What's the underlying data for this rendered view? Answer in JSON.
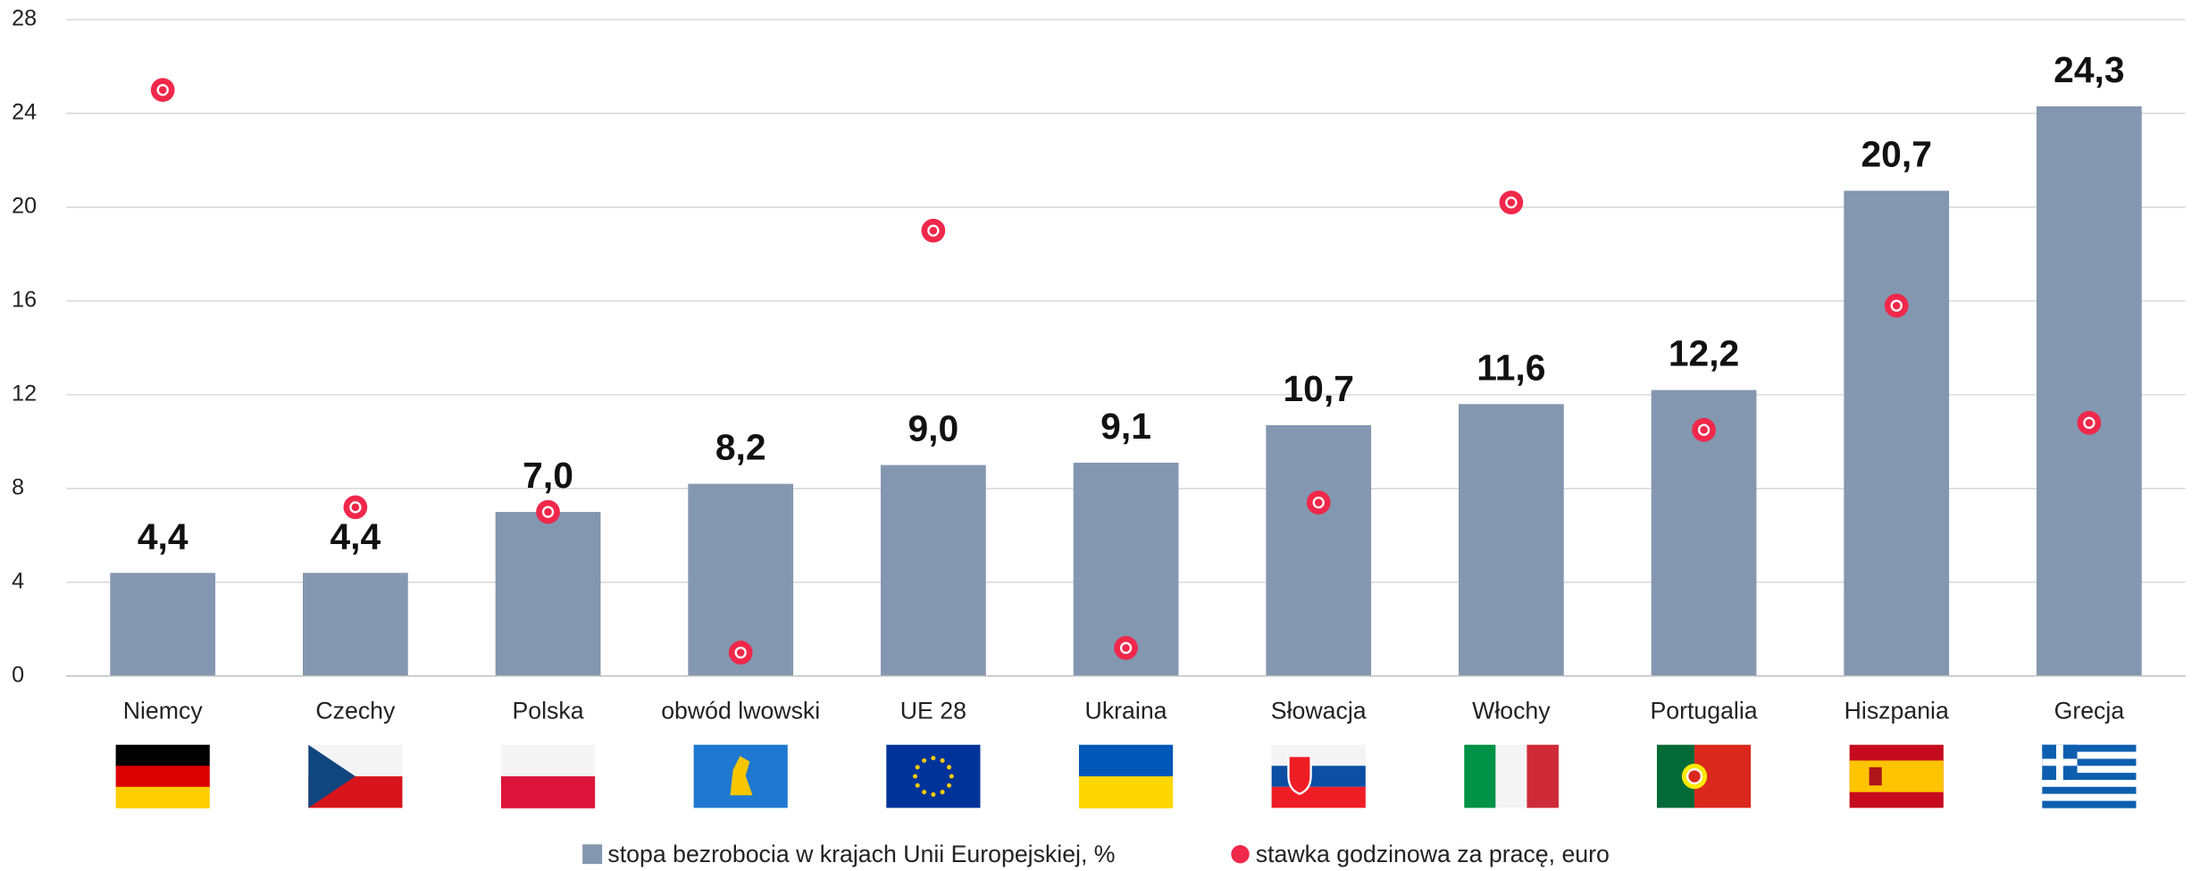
{
  "chart_data": {
    "type": "bar",
    "categories": [
      "Niemcy",
      "Czechy",
      "Polska",
      "obwód lwowski",
      "UE 28",
      "Ukraina",
      "Słowacja",
      "Włochy",
      "Portugalia",
      "Hiszpania",
      "Grecja"
    ],
    "series": [
      {
        "name": "stopa bezrobocia w krajach Unii Europejskiej, %",
        "type": "bar",
        "color": "#8497b0",
        "values": [
          4.4,
          4.4,
          7.0,
          8.2,
          9.0,
          9.1,
          10.7,
          11.6,
          12.2,
          20.7,
          24.3
        ],
        "value_labels": [
          "4,4",
          "4,4",
          "7,0",
          "8,2",
          "9,0",
          "9,1",
          "10,7",
          "11,6",
          "12,2",
          "20,7",
          "24,3"
        ]
      },
      {
        "name": "stawka godzinowa za pracę, euro",
        "type": "scatter",
        "color": "#f0284a",
        "values": [
          25.0,
          7.2,
          7.0,
          1.0,
          19.0,
          1.2,
          7.4,
          20.2,
          10.5,
          15.8,
          10.8
        ]
      }
    ],
    "ylim": [
      0,
      28
    ],
    "yticks": [
      0,
      4,
      8,
      12,
      16,
      20,
      24,
      28
    ],
    "grid": true,
    "legend": "bottom"
  }
}
